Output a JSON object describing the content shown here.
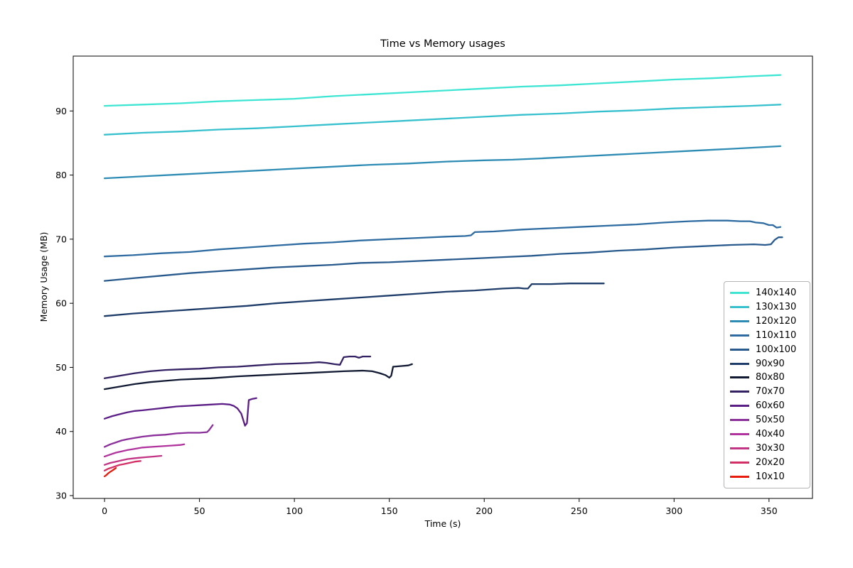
{
  "chart_data": {
    "type": "line",
    "title": "Time vs Memory usages",
    "xlabel": "Time (s)",
    "ylabel": "Memory Usage (MB)",
    "xlim": [
      -16.5,
      372.9
    ],
    "ylim": [
      29.56,
      98.56
    ],
    "x_ticks": [
      0,
      50,
      100,
      150,
      200,
      250,
      300,
      350
    ],
    "y_ticks": [
      30,
      40,
      50,
      60,
      70,
      80,
      90
    ],
    "grid": false,
    "legend_position": "lower right",
    "axis_color": "#000000",
    "series": [
      {
        "name": "140x140",
        "color": "#3ee5d3",
        "points": [
          [
            0,
            90.8
          ],
          [
            20,
            91.0
          ],
          [
            40,
            91.2
          ],
          [
            60,
            91.5
          ],
          [
            80,
            91.7
          ],
          [
            100,
            91.9
          ],
          [
            120,
            92.3
          ],
          [
            140,
            92.6
          ],
          [
            160,
            92.9
          ],
          [
            180,
            93.2
          ],
          [
            200,
            93.5
          ],
          [
            220,
            93.8
          ],
          [
            240,
            94.0
          ],
          [
            260,
            94.3
          ],
          [
            280,
            94.6
          ],
          [
            300,
            94.9
          ],
          [
            320,
            95.1
          ],
          [
            340,
            95.4
          ],
          [
            356,
            95.6
          ]
        ]
      },
      {
        "name": "130x130",
        "color": "#37c0cd",
        "points": [
          [
            0,
            86.3
          ],
          [
            20,
            86.6
          ],
          [
            40,
            86.8
          ],
          [
            60,
            87.1
          ],
          [
            80,
            87.3
          ],
          [
            100,
            87.6
          ],
          [
            120,
            87.9
          ],
          [
            140,
            88.2
          ],
          [
            160,
            88.5
          ],
          [
            180,
            88.8
          ],
          [
            200,
            89.1
          ],
          [
            220,
            89.4
          ],
          [
            240,
            89.6
          ],
          [
            260,
            89.9
          ],
          [
            280,
            90.1
          ],
          [
            300,
            90.4
          ],
          [
            320,
            90.6
          ],
          [
            340,
            90.8
          ],
          [
            356,
            91.0
          ]
        ]
      },
      {
        "name": "120x120",
        "color": "#2e8cb4",
        "points": [
          [
            0,
            79.5
          ],
          [
            20,
            79.8
          ],
          [
            40,
            80.1
          ],
          [
            60,
            80.4
          ],
          [
            80,
            80.7
          ],
          [
            100,
            81.0
          ],
          [
            120,
            81.3
          ],
          [
            140,
            81.6
          ],
          [
            160,
            81.8
          ],
          [
            180,
            82.1
          ],
          [
            200,
            82.3
          ],
          [
            215,
            82.4
          ],
          [
            230,
            82.6
          ],
          [
            250,
            82.9
          ],
          [
            270,
            83.2
          ],
          [
            290,
            83.5
          ],
          [
            310,
            83.8
          ],
          [
            330,
            84.1
          ],
          [
            356,
            84.5
          ]
        ]
      },
      {
        "name": "110x110",
        "color": "#2d6ba1",
        "points": [
          [
            0,
            67.3
          ],
          [
            15,
            67.5
          ],
          [
            30,
            67.8
          ],
          [
            45,
            68.0
          ],
          [
            60,
            68.4
          ],
          [
            75,
            68.7
          ],
          [
            90,
            69.0
          ],
          [
            105,
            69.3
          ],
          [
            120,
            69.5
          ],
          [
            135,
            69.8
          ],
          [
            150,
            70.0
          ],
          [
            165,
            70.2
          ],
          [
            180,
            70.4
          ],
          [
            190,
            70.5
          ],
          [
            193,
            70.6
          ],
          [
            195,
            71.1
          ],
          [
            205,
            71.2
          ],
          [
            220,
            71.5
          ],
          [
            235,
            71.7
          ],
          [
            250,
            71.9
          ],
          [
            265,
            72.1
          ],
          [
            280,
            72.3
          ],
          [
            295,
            72.6
          ],
          [
            308,
            72.8
          ],
          [
            318,
            72.9
          ],
          [
            328,
            72.9
          ],
          [
            335,
            72.8
          ],
          [
            340,
            72.8
          ],
          [
            343,
            72.6
          ],
          [
            347,
            72.5
          ],
          [
            350,
            72.2
          ],
          [
            352,
            72.2
          ],
          [
            354,
            71.8
          ],
          [
            356,
            71.9
          ]
        ]
      },
      {
        "name": "100x100",
        "color": "#285a8d",
        "points": [
          [
            0,
            63.5
          ],
          [
            15,
            63.9
          ],
          [
            30,
            64.3
          ],
          [
            45,
            64.7
          ],
          [
            60,
            65.0
          ],
          [
            75,
            65.3
          ],
          [
            90,
            65.6
          ],
          [
            105,
            65.8
          ],
          [
            120,
            66.0
          ],
          [
            135,
            66.3
          ],
          [
            150,
            66.4
          ],
          [
            165,
            66.6
          ],
          [
            180,
            66.8
          ],
          [
            195,
            67.0
          ],
          [
            210,
            67.2
          ],
          [
            225,
            67.4
          ],
          [
            240,
            67.7
          ],
          [
            255,
            67.9
          ],
          [
            270,
            68.2
          ],
          [
            285,
            68.4
          ],
          [
            300,
            68.7
          ],
          [
            315,
            68.9
          ],
          [
            330,
            69.1
          ],
          [
            342,
            69.2
          ],
          [
            348,
            69.1
          ],
          [
            351,
            69.2
          ],
          [
            353,
            69.9
          ],
          [
            355,
            70.3
          ],
          [
            357,
            70.3
          ]
        ]
      },
      {
        "name": "90x90",
        "color": "#1e3c69",
        "points": [
          [
            0,
            58.0
          ],
          [
            15,
            58.4
          ],
          [
            30,
            58.7
          ],
          [
            45,
            59.0
          ],
          [
            60,
            59.3
          ],
          [
            75,
            59.6
          ],
          [
            90,
            60.0
          ],
          [
            105,
            60.3
          ],
          [
            120,
            60.6
          ],
          [
            135,
            60.9
          ],
          [
            150,
            61.2
          ],
          [
            165,
            61.5
          ],
          [
            180,
            61.8
          ],
          [
            195,
            62.0
          ],
          [
            210,
            62.3
          ],
          [
            218,
            62.4
          ],
          [
            221,
            62.3
          ],
          [
            223,
            62.3
          ],
          [
            225,
            63.0
          ],
          [
            235,
            63.0
          ],
          [
            245,
            63.1
          ],
          [
            255,
            63.1
          ],
          [
            263,
            63.1
          ]
        ]
      },
      {
        "name": "80x80",
        "color": "#121a33",
        "points": [
          [
            0,
            46.6
          ],
          [
            8,
            47.0
          ],
          [
            16,
            47.4
          ],
          [
            24,
            47.7
          ],
          [
            32,
            47.9
          ],
          [
            40,
            48.1
          ],
          [
            48,
            48.2
          ],
          [
            56,
            48.3
          ],
          [
            70,
            48.6
          ],
          [
            84,
            48.8
          ],
          [
            98,
            49.0
          ],
          [
            112,
            49.2
          ],
          [
            126,
            49.4
          ],
          [
            136,
            49.5
          ],
          [
            141,
            49.4
          ],
          [
            145,
            49.1
          ],
          [
            148,
            48.8
          ],
          [
            150,
            48.4
          ],
          [
            151,
            48.7
          ],
          [
            152,
            50.1
          ],
          [
            156,
            50.2
          ],
          [
            160,
            50.3
          ],
          [
            162,
            50.5
          ]
        ]
      },
      {
        "name": "70x70",
        "color": "#342163",
        "points": [
          [
            0,
            48.3
          ],
          [
            8,
            48.7
          ],
          [
            16,
            49.1
          ],
          [
            24,
            49.4
          ],
          [
            32,
            49.6
          ],
          [
            40,
            49.7
          ],
          [
            50,
            49.8
          ],
          [
            60,
            50.0
          ],
          [
            70,
            50.1
          ],
          [
            80,
            50.3
          ],
          [
            90,
            50.5
          ],
          [
            100,
            50.6
          ],
          [
            108,
            50.7
          ],
          [
            113,
            50.8
          ],
          [
            117,
            50.7
          ],
          [
            121,
            50.5
          ],
          [
            124,
            50.4
          ],
          [
            126,
            51.6
          ],
          [
            129,
            51.7
          ],
          [
            132,
            51.7
          ],
          [
            134,
            51.5
          ],
          [
            136,
            51.7
          ],
          [
            140,
            51.7
          ]
        ]
      },
      {
        "name": "60x60",
        "color": "#5b1d86",
        "points": [
          [
            0,
            42.0
          ],
          [
            4,
            42.4
          ],
          [
            8,
            42.7
          ],
          [
            12,
            43.0
          ],
          [
            16,
            43.2
          ],
          [
            20,
            43.3
          ],
          [
            26,
            43.5
          ],
          [
            32,
            43.7
          ],
          [
            38,
            43.9
          ],
          [
            44,
            44.0
          ],
          [
            50,
            44.1
          ],
          [
            56,
            44.2
          ],
          [
            62,
            44.3
          ],
          [
            66,
            44.2
          ],
          [
            68,
            44.0
          ],
          [
            70,
            43.6
          ],
          [
            72,
            42.8
          ],
          [
            74,
            40.9
          ],
          [
            75,
            41.3
          ],
          [
            76,
            44.9
          ],
          [
            78,
            45.1
          ],
          [
            80,
            45.2
          ]
        ]
      },
      {
        "name": "50x50",
        "color": "#8b2f9b",
        "points": [
          [
            0,
            37.6
          ],
          [
            3,
            38.0
          ],
          [
            6,
            38.3
          ],
          [
            9,
            38.6
          ],
          [
            12,
            38.8
          ],
          [
            16,
            39.0
          ],
          [
            20,
            39.2
          ],
          [
            26,
            39.4
          ],
          [
            32,
            39.5
          ],
          [
            38,
            39.7
          ],
          [
            44,
            39.8
          ],
          [
            50,
            39.8
          ],
          [
            54,
            39.9
          ],
          [
            55,
            40.2
          ],
          [
            57,
            41.0
          ]
        ]
      },
      {
        "name": "40x40",
        "color": "#b1349e",
        "points": [
          [
            0,
            36.1
          ],
          [
            3,
            36.4
          ],
          [
            6,
            36.7
          ],
          [
            9,
            36.9
          ],
          [
            12,
            37.1
          ],
          [
            16,
            37.3
          ],
          [
            20,
            37.5
          ],
          [
            25,
            37.6
          ],
          [
            30,
            37.7
          ],
          [
            35,
            37.8
          ],
          [
            40,
            37.9
          ],
          [
            42,
            38.0
          ]
        ]
      },
      {
        "name": "30x30",
        "color": "#c23484",
        "points": [
          [
            0,
            34.8
          ],
          [
            3,
            35.1
          ],
          [
            6,
            35.3
          ],
          [
            9,
            35.5
          ],
          [
            12,
            35.7
          ],
          [
            15,
            35.8
          ],
          [
            18,
            35.9
          ],
          [
            22,
            36.0
          ],
          [
            26,
            36.1
          ],
          [
            30,
            36.2
          ]
        ]
      },
      {
        "name": "20x20",
        "color": "#d42e66",
        "points": [
          [
            0,
            33.9
          ],
          [
            2,
            34.2
          ],
          [
            4,
            34.4
          ],
          [
            6,
            34.6
          ],
          [
            8,
            34.8
          ],
          [
            10,
            34.9
          ],
          [
            13,
            35.1
          ],
          [
            16,
            35.3
          ],
          [
            19,
            35.4
          ]
        ]
      },
      {
        "name": "10x10",
        "color": "#e81a0c",
        "points": [
          [
            0,
            33.0
          ],
          [
            1,
            33.2
          ],
          [
            2,
            33.5
          ],
          [
            3,
            33.7
          ],
          [
            4,
            33.9
          ],
          [
            5,
            34.1
          ],
          [
            6,
            34.3
          ]
        ]
      }
    ]
  }
}
